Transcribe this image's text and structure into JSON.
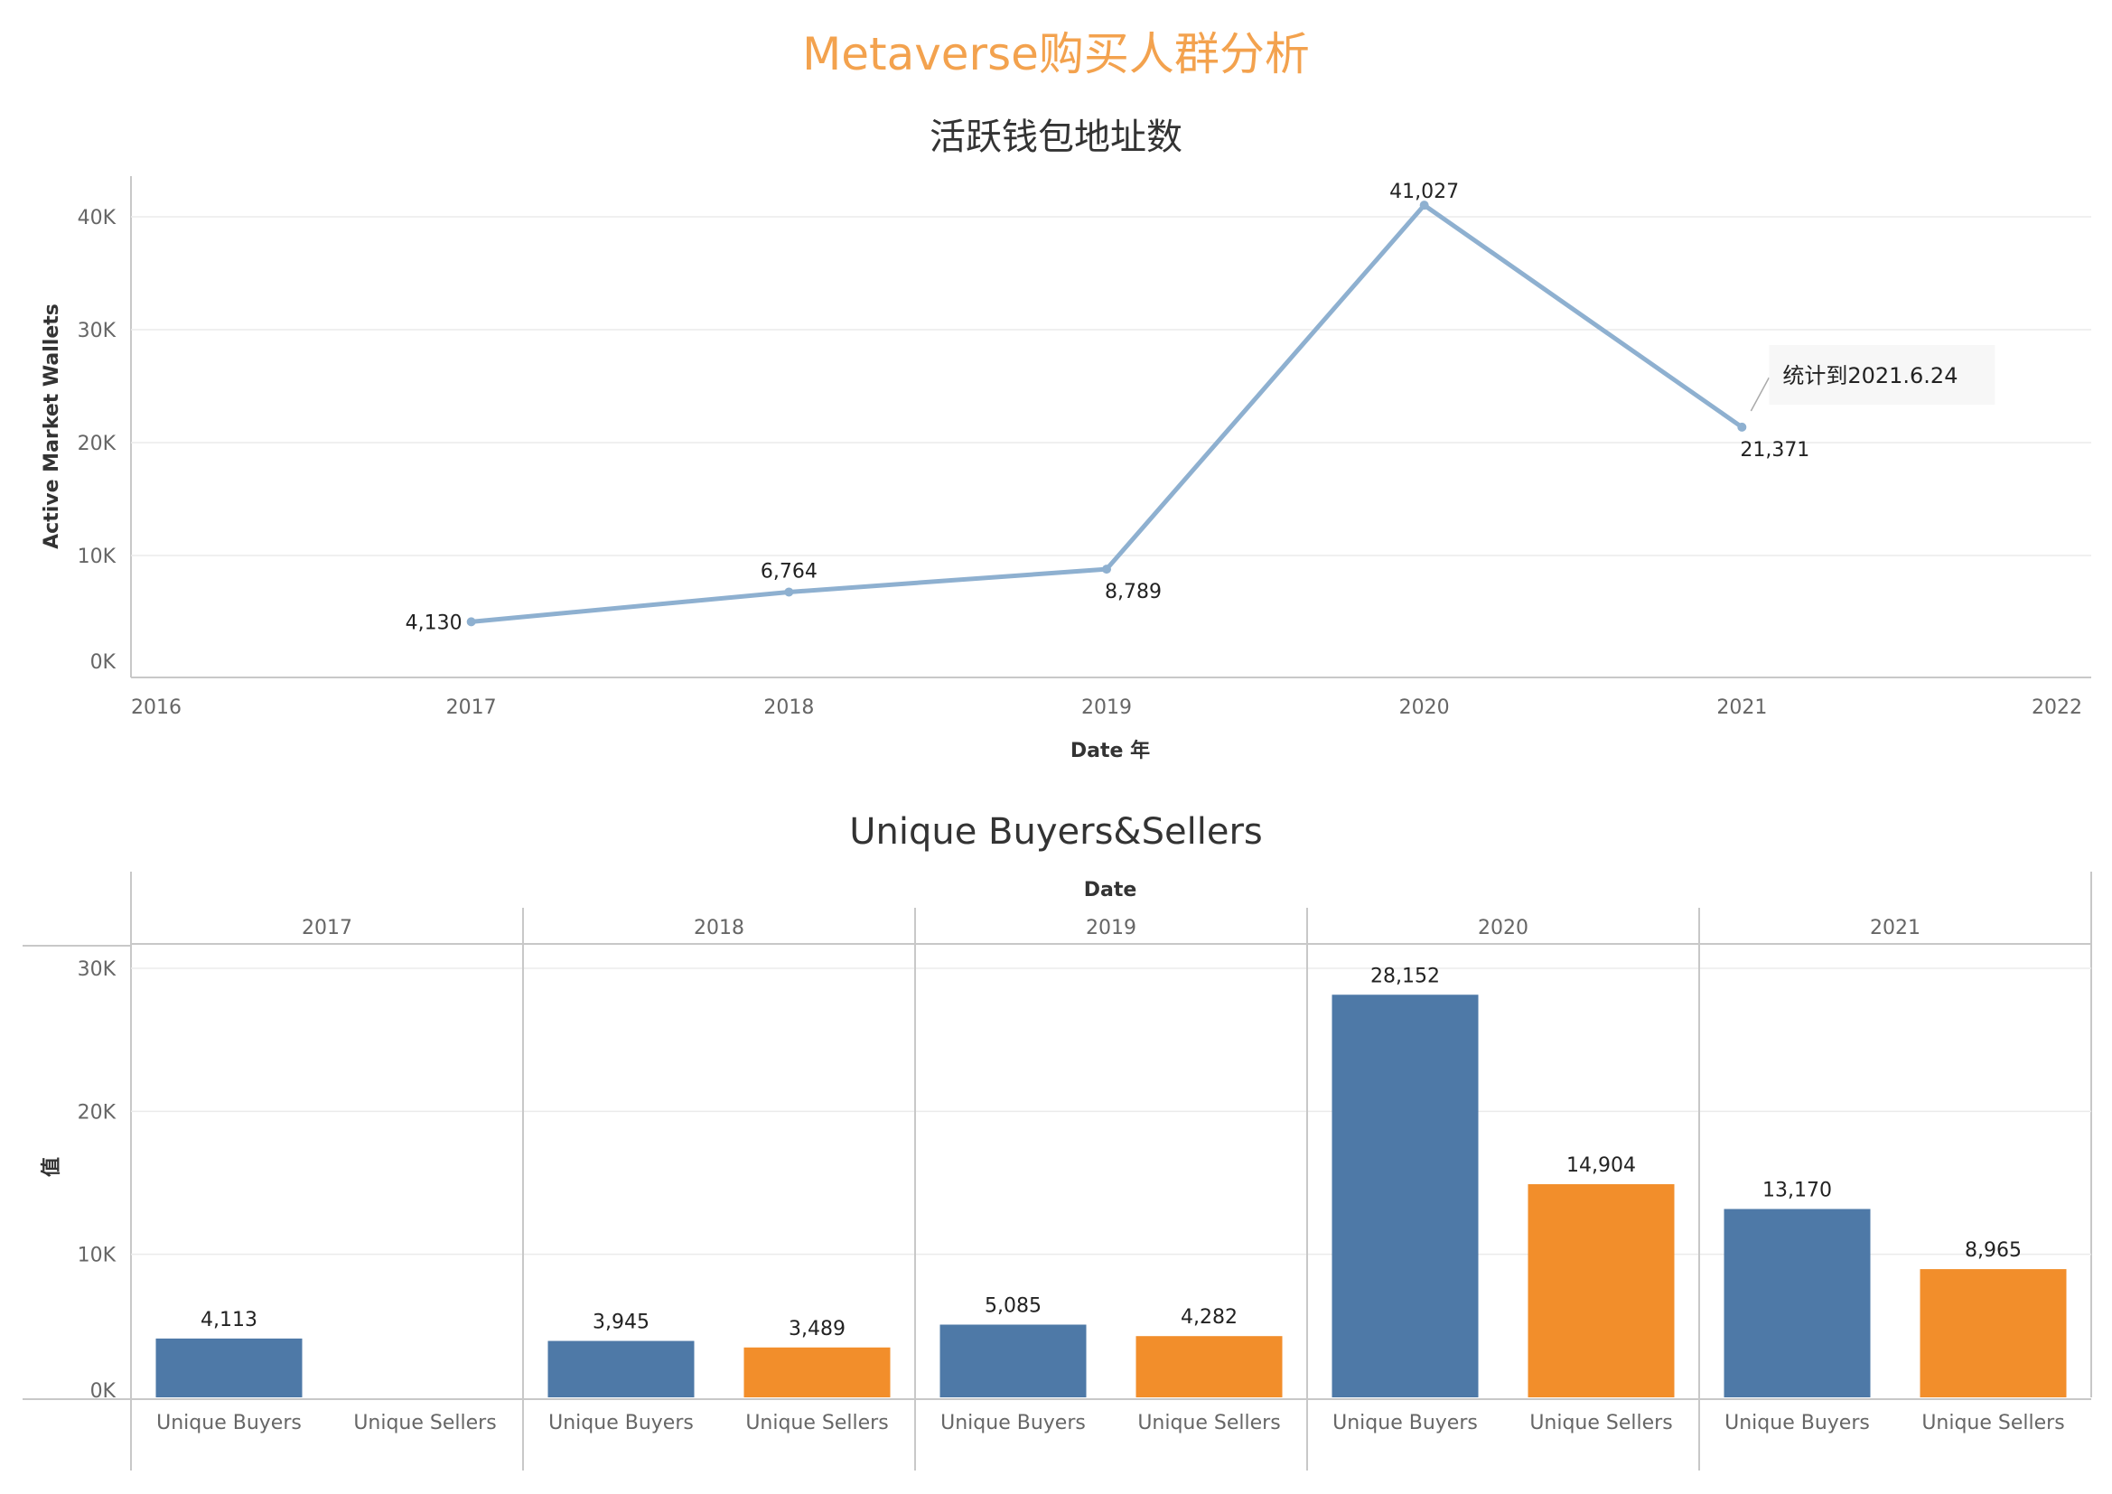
{
  "dashboard": {
    "title": "Metaverse购买人群分析"
  },
  "colors": {
    "line": "#8eb0d0",
    "buyers": "#4e79a7",
    "sellers": "#f28e2b",
    "title": "#f3a24e"
  },
  "chart_data": [
    {
      "type": "line",
      "title": "活跃钱包地址数",
      "xlabel": "Date 年",
      "ylabel": "Active Market Wallets",
      "x_ticks": [
        "2016",
        "2017",
        "2018",
        "2019",
        "2020",
        "2021",
        "2022"
      ],
      "y_ticks": [
        "0K",
        "10K",
        "20K",
        "30K",
        "40K"
      ],
      "xlim": [
        2016,
        2022
      ],
      "ylim": [
        0,
        43000
      ],
      "grid": true,
      "series": [
        {
          "x": [
            2017,
            2018,
            2019,
            2020,
            2021
          ],
          "values": [
            4130,
            6764,
            8789,
            41027,
            21371
          ],
          "labels": [
            "4,130",
            "6,764",
            "8,789",
            "41,027",
            "21,371"
          ]
        }
      ],
      "annotation": {
        "x": 2021,
        "text": "统计到2021.6.24"
      }
    },
    {
      "type": "bar",
      "title": "Unique Buyers&Sellers",
      "column_header": "Date",
      "ylabel": "值",
      "y_ticks": [
        "0K",
        "10K",
        "20K",
        "30K"
      ],
      "ylim": [
        0,
        31000
      ],
      "grid": true,
      "categories": [
        "2017",
        "2018",
        "2019",
        "2020",
        "2021"
      ],
      "sub_categories": [
        "Unique Buyers",
        "Unique Sellers"
      ],
      "series": [
        {
          "name": "Unique Buyers",
          "values": [
            4113,
            3945,
            5085,
            28152,
            13170
          ],
          "labels": [
            "4,113",
            "3,945",
            "5,085",
            "28,152",
            "13,170"
          ]
        },
        {
          "name": "Unique Sellers",
          "values": [
            null,
            3489,
            4282,
            14904,
            8965
          ],
          "labels": [
            "",
            "3,489",
            "4,282",
            "14,904",
            "8,965"
          ]
        }
      ]
    }
  ]
}
